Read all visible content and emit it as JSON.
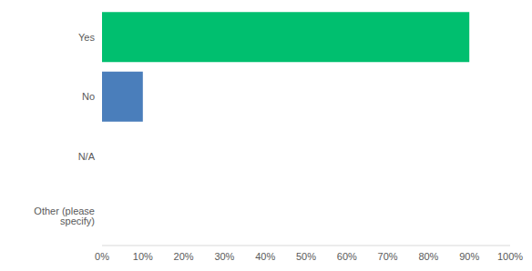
{
  "chart_data": {
    "type": "bar",
    "orientation": "horizontal",
    "categories": [
      "Yes",
      "No",
      "N/A",
      "Other (please specify)"
    ],
    "values": [
      90,
      10,
      0,
      0
    ],
    "colors": [
      "#00bf6f",
      "#4a7ebb",
      "#00bf6f",
      "#00bf6f"
    ],
    "xlim": [
      0,
      100
    ],
    "xticks": [
      {
        "value": 0,
        "label": "0%"
      },
      {
        "value": 10,
        "label": "10%"
      },
      {
        "value": 20,
        "label": "20%"
      },
      {
        "value": 30,
        "label": "30%"
      },
      {
        "value": 40,
        "label": "40%"
      },
      {
        "value": 50,
        "label": "50%"
      },
      {
        "value": 60,
        "label": "60%"
      },
      {
        "value": 70,
        "label": "70%"
      },
      {
        "value": 80,
        "label": "80%"
      },
      {
        "value": 90,
        "label": "90%"
      },
      {
        "value": 100,
        "label": "100%"
      }
    ],
    "grid": false
  }
}
